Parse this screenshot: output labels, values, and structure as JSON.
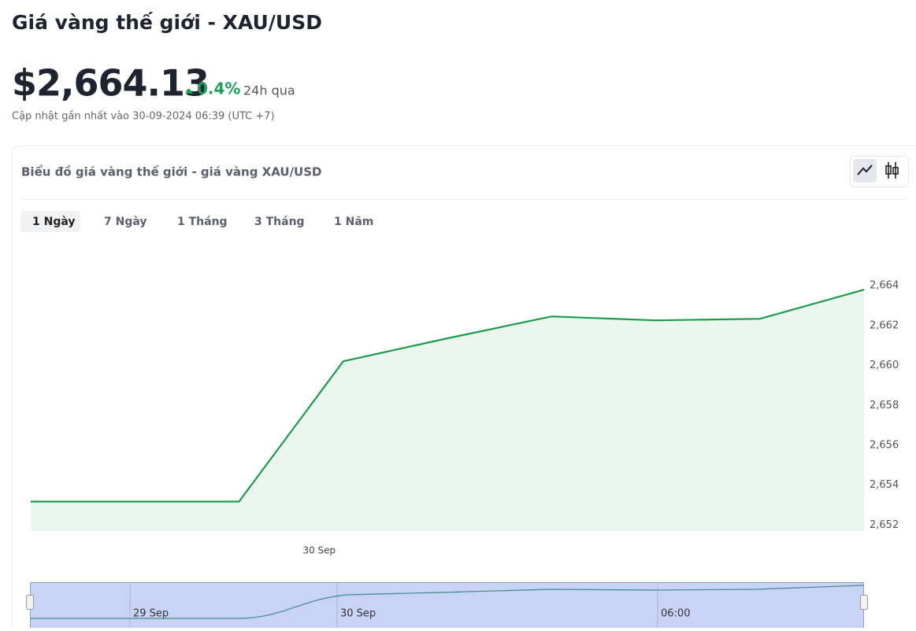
{
  "header": {
    "title": "Giá vàng thế giới - XAU/USD",
    "price": "$2,664.13",
    "change": "0.4%",
    "change_period": "24h qua",
    "updated": "Cập nhật gần nhất vào 30-09-2024 06:39 (UTC +7)"
  },
  "card": {
    "title": "Biểu đồ giá vàng thế giới - giá vàng XAU/USD",
    "tabs": [
      "1 Ngày",
      "7 Ngày",
      "1 Tháng",
      "3 Tháng",
      "1 Năm"
    ]
  },
  "chart_data": {
    "type": "line",
    "color": "#1e9a4c",
    "fill": "#eaf5ee",
    "x": [
      0,
      1,
      2,
      3,
      4,
      5,
      6,
      7,
      8
    ],
    "values": [
      2653.18,
      2653.18,
      2653.18,
      2660.21,
      2661.36,
      2662.46,
      2662.26,
      2662.34,
      2663.8
    ],
    "xlim": [
      0,
      8
    ],
    "xticks": [
      {
        "value": 2.77,
        "label": "30 Sep"
      }
    ],
    "ylim": [
      2651.7,
      2665.7
    ],
    "yticks": [
      {
        "value": 2652,
        "label": "2,652"
      },
      {
        "value": 2654,
        "label": "2,654"
      },
      {
        "value": 2656,
        "label": "2,656"
      },
      {
        "value": 2658,
        "label": "2,658"
      },
      {
        "value": 2660,
        "label": "2,660"
      },
      {
        "value": 2662,
        "label": "2,662"
      },
      {
        "value": 2664,
        "label": "2,664"
      }
    ]
  },
  "navigator": {
    "labels": [
      "29 Sep",
      "30 Sep",
      "06:00"
    ]
  }
}
